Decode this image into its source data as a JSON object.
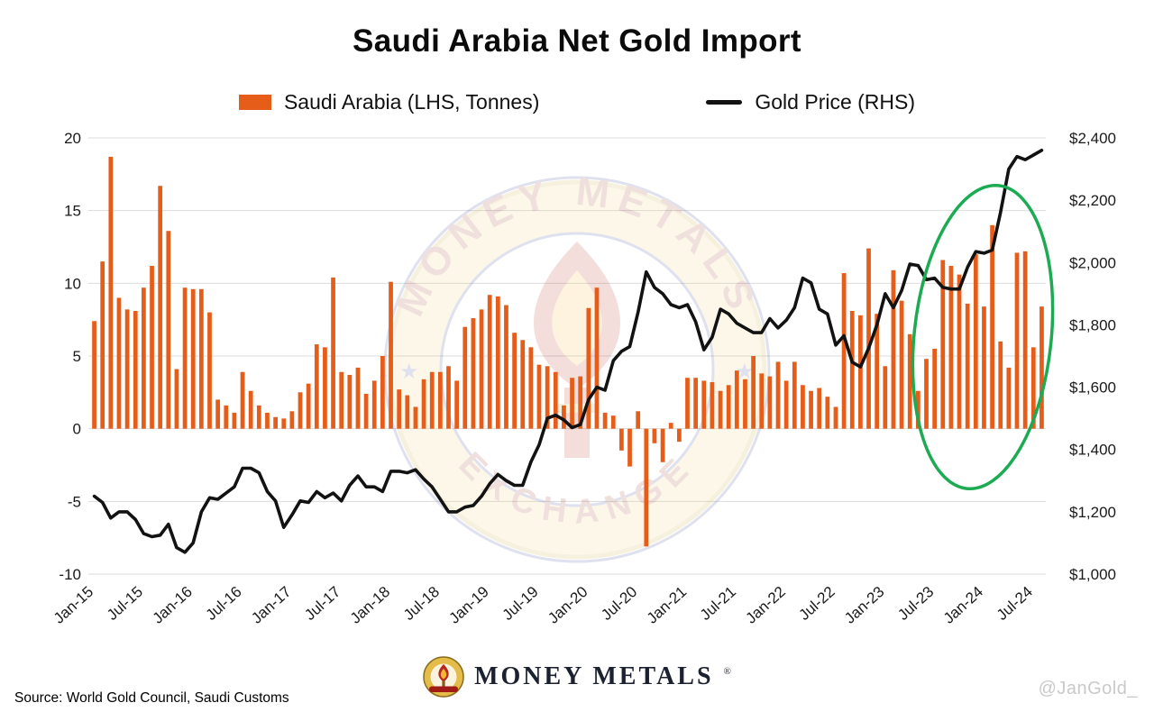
{
  "title": "Saudi Arabia Net Gold Import",
  "legend": {
    "bars": {
      "label": "Saudi Arabia (LHS, Tonnes)",
      "color": "#E65C19"
    },
    "line": {
      "label": "Gold Price (RHS)",
      "color": "#121212"
    }
  },
  "watermark": {
    "top_text": "MONEY METALS",
    "bottom_text": "EXCHANGE"
  },
  "footer": {
    "source": "Source: World Gold Council, Saudi Customs",
    "brand": "MONEY METALS",
    "brand_reg": "®",
    "handle": "@JanGold_"
  },
  "chart_data": {
    "type": "combo",
    "title": "Saudi Arabia Net Gold Import",
    "grid": true,
    "legend_position": "top",
    "x_tick_every": 6,
    "months": [
      "Jan-15",
      "Feb-15",
      "Mar-15",
      "Apr-15",
      "May-15",
      "Jun-15",
      "Jul-15",
      "Aug-15",
      "Sep-15",
      "Oct-15",
      "Nov-15",
      "Dec-15",
      "Jan-16",
      "Feb-16",
      "Mar-16",
      "Apr-16",
      "May-16",
      "Jun-16",
      "Jul-16",
      "Aug-16",
      "Sep-16",
      "Oct-16",
      "Nov-16",
      "Dec-16",
      "Jan-17",
      "Feb-17",
      "Mar-17",
      "Apr-17",
      "May-17",
      "Jun-17",
      "Jul-17",
      "Aug-17",
      "Sep-17",
      "Oct-17",
      "Nov-17",
      "Dec-17",
      "Jan-18",
      "Feb-18",
      "Mar-18",
      "Apr-18",
      "May-18",
      "Jun-18",
      "Jul-18",
      "Aug-18",
      "Sep-18",
      "Oct-18",
      "Nov-18",
      "Dec-18",
      "Jan-19",
      "Feb-19",
      "Mar-19",
      "Apr-19",
      "May-19",
      "Jun-19",
      "Jul-19",
      "Aug-19",
      "Sep-19",
      "Oct-19",
      "Nov-19",
      "Dec-19",
      "Jan-20",
      "Feb-20",
      "Mar-20",
      "Apr-20",
      "May-20",
      "Jun-20",
      "Jul-20",
      "Aug-20",
      "Sep-20",
      "Oct-20",
      "Nov-20",
      "Dec-20",
      "Jan-21",
      "Feb-21",
      "Mar-21",
      "Apr-21",
      "May-21",
      "Jun-21",
      "Jul-21",
      "Aug-21",
      "Sep-21",
      "Oct-21",
      "Nov-21",
      "Dec-21",
      "Jan-22",
      "Feb-22",
      "Mar-22",
      "Apr-22",
      "May-22",
      "Jun-22",
      "Jul-22",
      "Aug-22",
      "Sep-22",
      "Oct-22",
      "Nov-22",
      "Dec-22",
      "Jan-23",
      "Feb-23",
      "Mar-23",
      "Apr-23",
      "May-23",
      "Jun-23",
      "Jul-23",
      "Aug-23",
      "Sep-23",
      "Oct-23",
      "Nov-23",
      "Dec-23",
      "Jan-24",
      "Feb-24",
      "Mar-24",
      "Apr-24",
      "May-24",
      "Jun-24",
      "Jul-24",
      "Aug-24"
    ],
    "series": [
      {
        "name": "Saudi Arabia (LHS, Tonnes)",
        "type": "bar",
        "axis": "left",
        "color": "#E65C19",
        "values": [
          7.4,
          11.5,
          18.7,
          9.0,
          8.2,
          8.1,
          9.7,
          11.2,
          16.7,
          13.6,
          4.1,
          9.7,
          9.6,
          9.6,
          8.0,
          2.0,
          1.6,
          1.1,
          3.9,
          2.6,
          1.6,
          1.1,
          0.8,
          0.7,
          1.2,
          2.5,
          3.1,
          5.8,
          5.6,
          10.4,
          3.9,
          3.7,
          4.2,
          2.4,
          3.3,
          5.0,
          10.1,
          2.7,
          2.3,
          1.5,
          3.4,
          3.9,
          3.9,
          4.3,
          3.3,
          7.0,
          7.6,
          8.2,
          9.2,
          9.1,
          8.5,
          6.6,
          6.1,
          5.6,
          4.4,
          4.3,
          3.9,
          1.6,
          3.5,
          3.6,
          8.3,
          9.7,
          1.1,
          0.9,
          -1.5,
          -2.6,
          1.2,
          -8.1,
          -1.0,
          -2.3,
          0.4,
          -0.9,
          3.5,
          3.5,
          3.3,
          3.2,
          2.6,
          3.0,
          4.0,
          3.4,
          5.0,
          3.8,
          3.6,
          4.6,
          3.3,
          4.6,
          3.0,
          2.6,
          2.8,
          2.2,
          1.5,
          10.7,
          8.1,
          7.8,
          12.4,
          7.9,
          4.3,
          10.9,
          8.8,
          6.5,
          2.6,
          4.8,
          5.5,
          11.6,
          11.2,
          10.6,
          8.6,
          12.0,
          8.4,
          14.0,
          6.0,
          4.2,
          12.1,
          12.2,
          5.6,
          8.4
        ]
      },
      {
        "name": "Gold Price (RHS)",
        "type": "line",
        "axis": "right",
        "color": "#121212",
        "values": [
          1250,
          1230,
          1180,
          1200,
          1200,
          1175,
          1130,
          1120,
          1125,
          1160,
          1085,
          1070,
          1100,
          1200,
          1245,
          1240,
          1260,
          1280,
          1340,
          1340,
          1325,
          1265,
          1235,
          1150,
          1190,
          1235,
          1230,
          1265,
          1245,
          1260,
          1235,
          1285,
          1315,
          1280,
          1280,
          1265,
          1330,
          1330,
          1325,
          1335,
          1305,
          1280,
          1240,
          1200,
          1200,
          1215,
          1220,
          1250,
          1290,
          1320,
          1300,
          1285,
          1285,
          1360,
          1415,
          1500,
          1510,
          1495,
          1470,
          1480,
          1560,
          1600,
          1590,
          1685,
          1715,
          1730,
          1840,
          1970,
          1920,
          1900,
          1865,
          1855,
          1865,
          1810,
          1720,
          1760,
          1850,
          1835,
          1805,
          1790,
          1775,
          1775,
          1820,
          1790,
          1815,
          1855,
          1950,
          1935,
          1850,
          1835,
          1735,
          1765,
          1680,
          1665,
          1725,
          1800,
          1900,
          1855,
          1910,
          1995,
          1990,
          1945,
          1950,
          1920,
          1915,
          1915,
          1985,
          2035,
          2030,
          2040,
          2160,
          2300,
          2340,
          2330,
          2345,
          2360
        ]
      }
    ],
    "left_axis": {
      "label": "Tonnes",
      "min": -10,
      "max": 20,
      "ticks": [
        -10,
        -5,
        0,
        5,
        10,
        15,
        20
      ]
    },
    "right_axis": {
      "label": "Gold Price (USD)",
      "min": 1000,
      "max": 2400,
      "tick_values": [
        1000,
        1200,
        1400,
        1600,
        1800,
        2000,
        2200,
        2400
      ],
      "ticks": [
        "$1,000",
        "$1,200",
        "$1,400",
        "$1,600",
        "$1,800",
        "$2,000",
        "$2,200",
        "$2,400"
      ]
    },
    "annotation": {
      "type": "ellipse",
      "color": "#1cab52",
      "note": "Green circle highlighting elevated imports mid-2023 through 2024"
    }
  }
}
